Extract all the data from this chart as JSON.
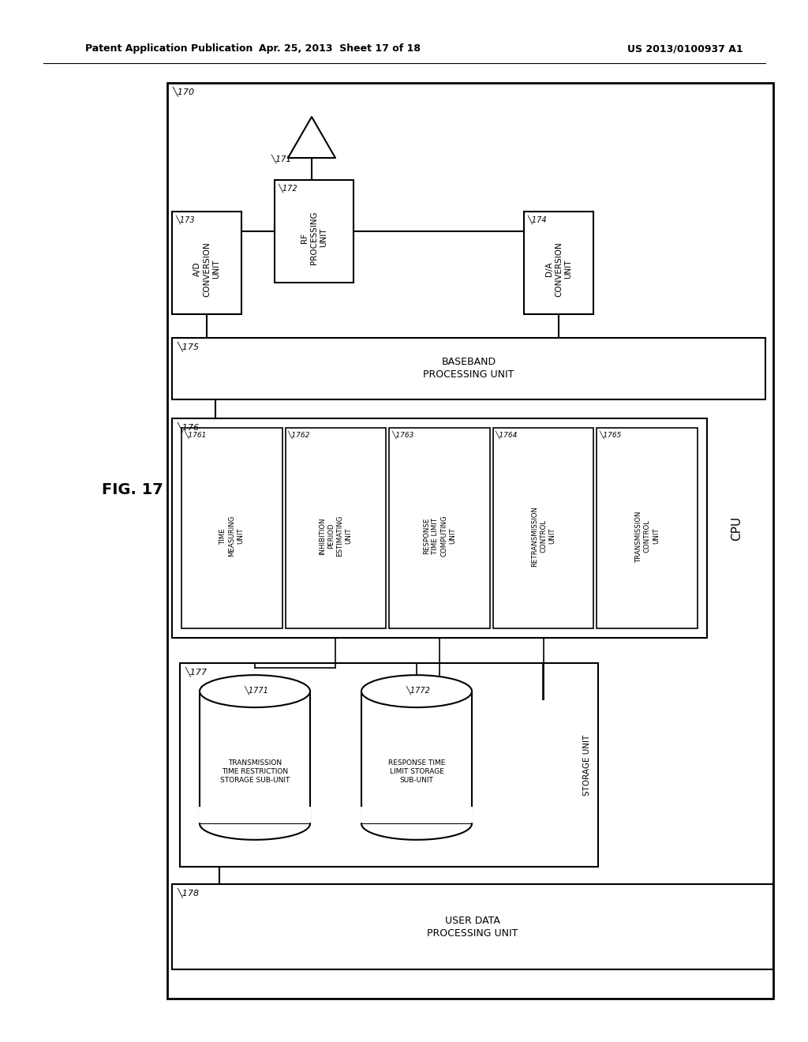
{
  "bg": "#ffffff",
  "header_left": "Patent Application Publication",
  "header_mid": "Apr. 25, 2013  Sheet 17 of 18",
  "header_right": "US 2013/0100937 A1",
  "fig_title": "FIG. 17",
  "outer_label": "170",
  "ant_label": "171",
  "rf_label": "172",
  "ad_label": "173",
  "da_label": "174",
  "bb_label": "175",
  "cpu_outer_label": "176",
  "cpu_text": "CPU",
  "sub_ids": [
    "1761",
    "1762",
    "1763",
    "1764",
    "1765"
  ],
  "sub_texts": [
    "TIME\nMEASURING\nUNIT",
    "INHIBITION\nPERIOD\nESTIMATING\nUNIT",
    "RESPONSE\nTIME LIMIT\nCOMPUTING\nUNIT",
    "RETRANSMISSION\nCONTROL\nUNIT",
    "TRANSMISSION\nCONTROL\nUNIT"
  ],
  "storage_label": "177",
  "storage_text": "STORAGE UNIT",
  "drum1_label": "1771",
  "drum1_text": "TRANSMISSION\nTIME RESTRICTION\nSTORAGE SUB-UNIT",
  "drum2_label": "1772",
  "drum2_text": "RESPONSE TIME\nLIMIT STORAGE\nSUB-UNIT",
  "ud_label": "178",
  "ud_text": "USER DATA\nPROCESSING UNIT",
  "rf_text": "RF\nPROCESSING\nUNIT",
  "ad_text": "A/D\nCONVERSION\nUNIT",
  "da_text": "D/A\nCONVERSION\nUNIT",
  "bb_text": "BASEBAND\nPROCESSING UNIT"
}
